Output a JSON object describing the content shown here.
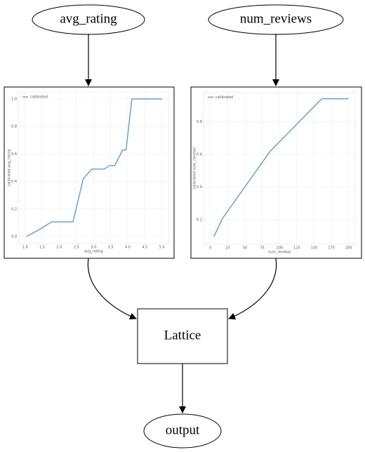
{
  "nodes": {
    "input_1": "avg_rating",
    "input_2": "num_reviews",
    "lattice": "Lattice",
    "output": "output"
  },
  "chart_data": [
    {
      "type": "line",
      "xlabel": "avg_rating",
      "ylabel": "calibrated avg_rating",
      "x": [
        1.04,
        1.45,
        1.78,
        2.4,
        2.7,
        2.95,
        3.31,
        3.46,
        3.62,
        3.85,
        3.95,
        4.12,
        5.0
      ],
      "series": [
        {
          "name": "calibrated",
          "color": "#5a9fd0",
          "values": [
            0,
            0.056,
            0.107,
            0.107,
            0.42,
            0.49,
            0.49,
            0.515,
            0.515,
            0.63,
            0.63,
            1.0,
            1.0
          ]
        }
      ],
      "xlim": [
        0.8,
        5.2
      ],
      "ylim": [
        -0.05,
        1.05
      ],
      "xticks": [
        {
          "value": 1,
          "label": "1.0"
        },
        1.5,
        {
          "value": 2,
          "label": "2.0"
        },
        2.5,
        {
          "value": 3,
          "label": "3.0"
        },
        3.5,
        {
          "value": 4,
          "label": "4.0"
        },
        4.5,
        {
          "value": 5,
          "label": "5.0"
        }
      ],
      "yticks": [
        {
          "value": 0,
          "label": "0.0"
        },
        0.2,
        0.4,
        0.6,
        0.8,
        {
          "value": 1,
          "label": "1.0"
        }
      ],
      "grid": true
    },
    {
      "type": "line",
      "xlabel": "num_reviews",
      "ylabel": "calibrated num_reviews",
      "x": [
        5,
        17,
        86,
        161,
        200
      ],
      "series": [
        {
          "name": "calibrated",
          "color": "#5a9fd0",
          "values": [
            0.097,
            0.205,
            0.617,
            0.94,
            0.94
          ]
        }
      ],
      "xlim": [
        -10,
        210
      ],
      "ylim": [
        0.05,
        0.98
      ],
      "xticks": [
        0,
        25,
        50,
        75,
        100,
        125,
        150,
        175,
        200
      ],
      "yticks": [
        0.2,
        0.4,
        0.6,
        0.8
      ],
      "grid": true
    }
  ]
}
